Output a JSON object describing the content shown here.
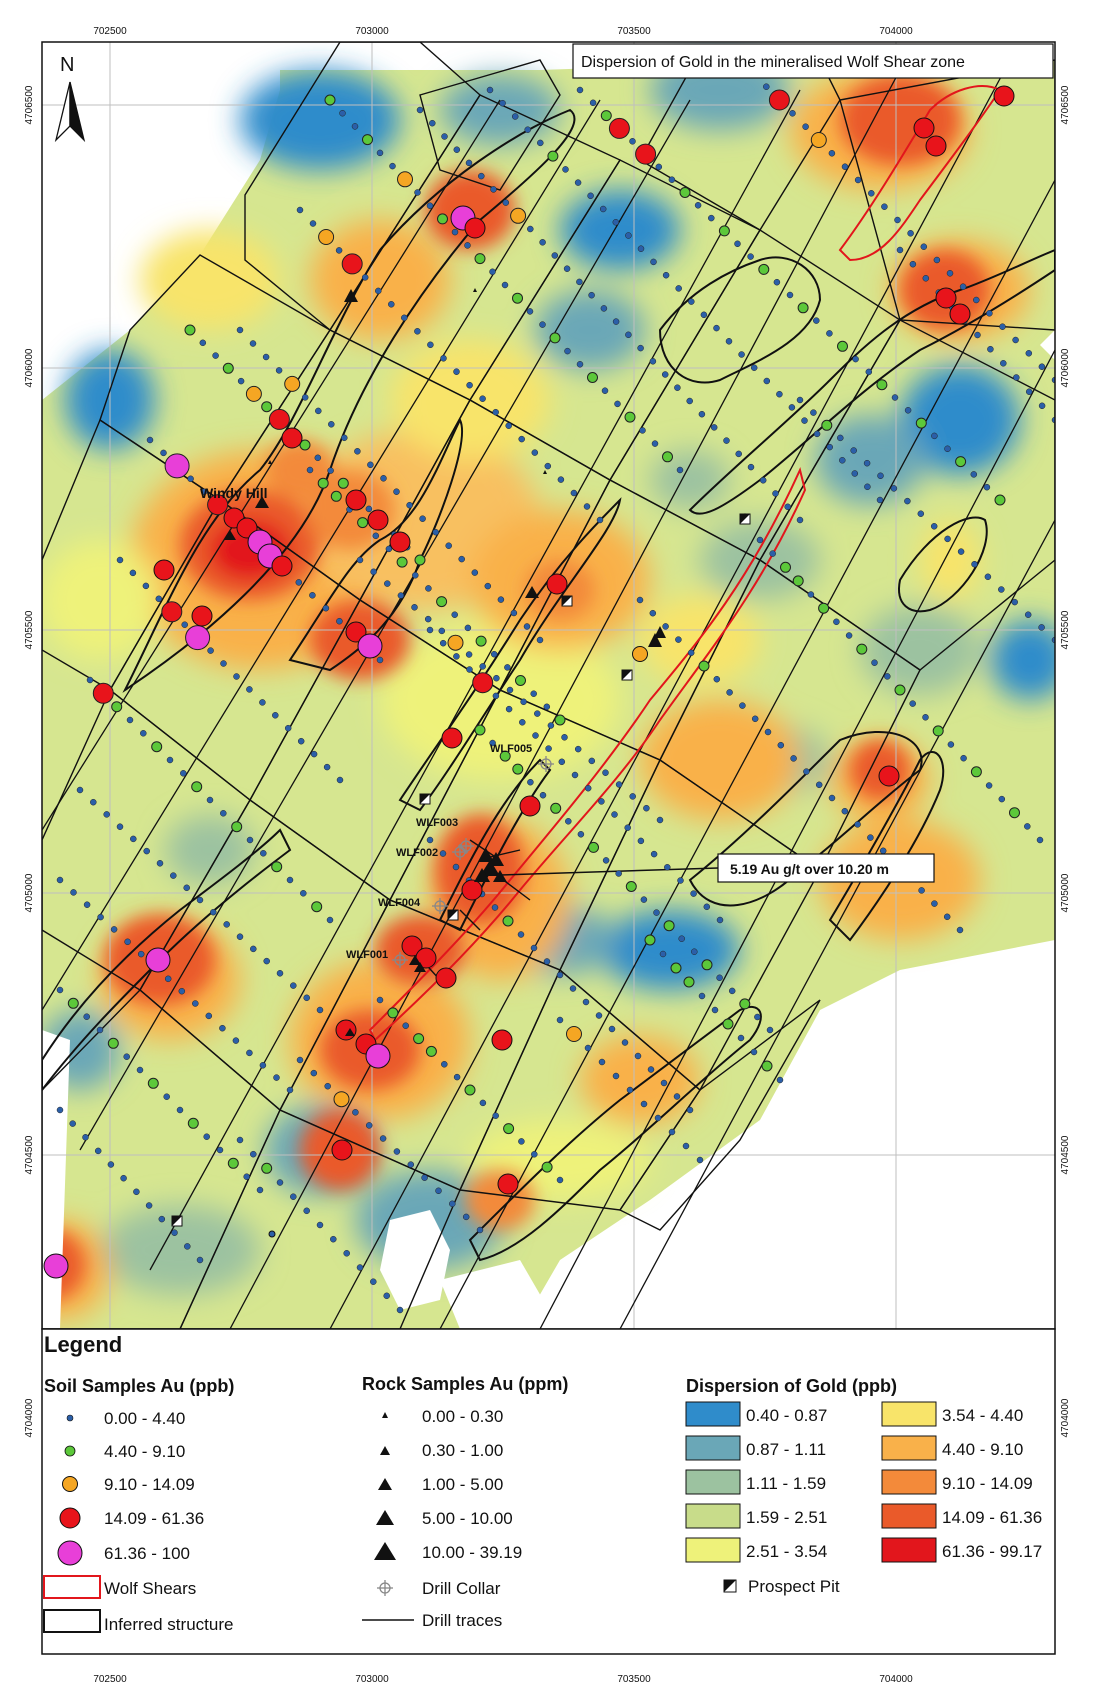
{
  "title": "Dispersion of Gold in the mineralised Wolf Shear zone",
  "north_arrow": "N",
  "axes": {
    "x_ticks": [
      "702500",
      "703000",
      "703500",
      "704000"
    ],
    "y_ticks": [
      "4706500",
      "4706000",
      "4705500",
      "4705000",
      "4704500",
      "4704000"
    ]
  },
  "labels": {
    "windy_hill": "Windy Hill",
    "wlf005": "WLF005",
    "wlf003": "WLF003",
    "wlf002": "WLF002",
    "wlf004": "WLF004",
    "wlf001": "WLF001",
    "callout": "5.19 Au g/t over 10.20 m"
  },
  "legend": {
    "title": "Legend",
    "soil_title": "Soil Samples Au (ppb)",
    "soil": [
      {
        "label": "0.00 - 4.40",
        "color": "#2b5fa8"
      },
      {
        "label": "4.40 - 9.10",
        "color": "#5cc83a"
      },
      {
        "label": "9.10 - 14.09",
        "color": "#f5a623"
      },
      {
        "label": "14.09 - 61.36",
        "color": "#e8141b"
      },
      {
        "label": " 61.36 - 100",
        "color": "#e83fd8"
      }
    ],
    "wolf_shears": "Wolf Shears",
    "inferred": "Inferred structure",
    "rock_title": "Rock Samples Au (ppm)",
    "rock": [
      {
        "label": "0.00 - 0.30"
      },
      {
        "label": "0.30 - 1.00"
      },
      {
        "label": "1.00 - 5.00"
      },
      {
        "label": "5.00 - 10.00"
      },
      {
        "label": "10.00 - 39.19"
      }
    ],
    "drill_collar": "Drill Collar",
    "drill_traces": "Drill traces",
    "dispersion_title": "Dispersion of Gold (ppb)",
    "dispersion": [
      {
        "label": "0.40 - 0.87",
        "color": "#2f8ccb"
      },
      {
        "label": "0.87 - 1.11",
        "color": "#6aa7b7"
      },
      {
        "label": "1.11 - 1.59",
        "color": "#9cc2a0"
      },
      {
        "label": "1.59 - 2.51",
        "color": "#c8dc8a"
      },
      {
        "label": "2.51 - 3.54",
        "color": "#eef27a"
      },
      {
        "label": "3.54 - 4.40",
        "color": "#f8e46a"
      },
      {
        "label": "4.40 - 9.10",
        "color": "#f9b14a"
      },
      {
        "label": "9.10 - 14.09",
        "color": "#f38a3a"
      },
      {
        "label": "14.09 - 61.36",
        "color": "#ea5a2a"
      },
      {
        "label": "61.36 - 99.17",
        "color": "#e2161c"
      }
    ],
    "prospect_pit": "Prospect Pit"
  }
}
